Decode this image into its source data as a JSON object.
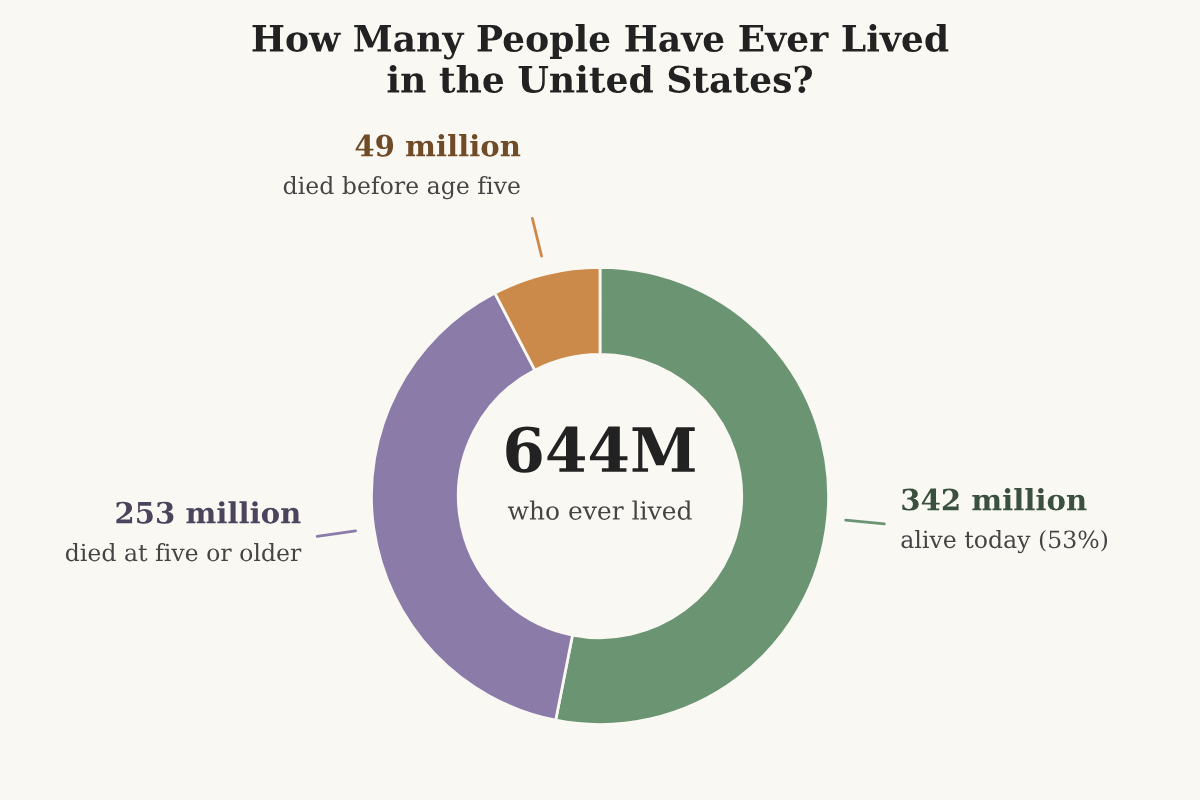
{
  "chart_data": {
    "type": "donut",
    "title": "How Many People Have Ever Lived\nin the United States?",
    "categories": [
      "alive today (53%)",
      "died at five or older",
      "died before age five"
    ],
    "values": [
      342,
      253,
      49
    ],
    "value_labels": [
      "342 million",
      "253 million",
      "49 million"
    ],
    "colors": [
      "#6b9473",
      "#8b7ba8",
      "#cc8a4a"
    ],
    "annotations": [
      "644M",
      "who ever lived"
    ]
  }
}
